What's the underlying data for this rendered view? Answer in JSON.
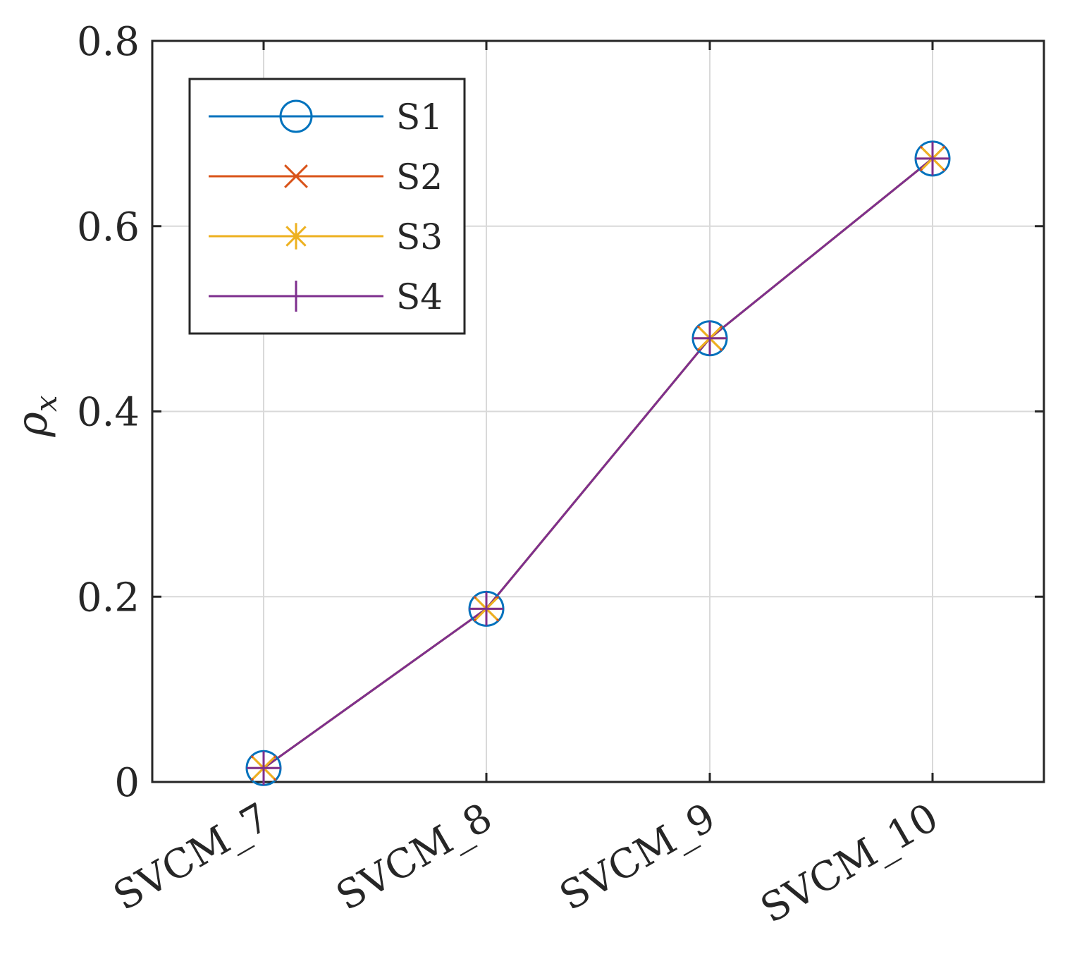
{
  "chart_data": {
    "type": "line",
    "title": "",
    "xlabel": "",
    "ylabel": "ρ",
    "ylabel_subscript": "x",
    "categories": [
      "SVCM_7",
      "SVCM_8",
      "SVCM_9",
      "SVCM_10"
    ],
    "ylim": [
      0,
      0.8
    ],
    "yticks": [
      0,
      0.2,
      0.4,
      0.6,
      0.8
    ],
    "ytick_labels": [
      "0",
      "0.2",
      "0.4",
      "0.6",
      "0.8"
    ],
    "grid": true,
    "legend_position": "top-left",
    "series": [
      {
        "name": "S1",
        "marker": "circle",
        "color": "#0072BD",
        "values": [
          0.015,
          0.187,
          0.479,
          0.673
        ]
      },
      {
        "name": "S2",
        "marker": "x",
        "color": "#D95319",
        "values": [
          0.015,
          0.187,
          0.479,
          0.673
        ]
      },
      {
        "name": "S3",
        "marker": "asterisk",
        "color": "#EDB120",
        "values": [
          0.015,
          0.187,
          0.479,
          0.673
        ]
      },
      {
        "name": "S4",
        "marker": "plus",
        "color": "#7E2F8E",
        "values": [
          0.015,
          0.187,
          0.479,
          0.673
        ]
      }
    ]
  }
}
